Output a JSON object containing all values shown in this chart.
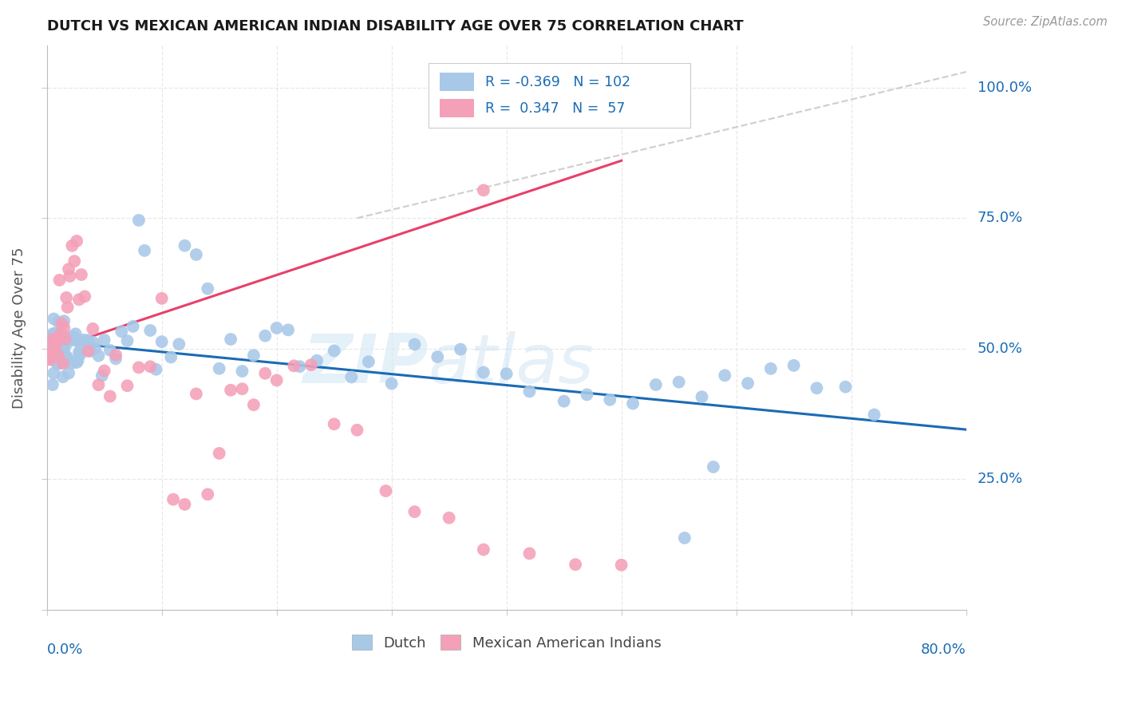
{
  "title": "DUTCH VS MEXICAN AMERICAN INDIAN DISABILITY AGE OVER 75 CORRELATION CHART",
  "source": "Source: ZipAtlas.com",
  "ylabel": "Disability Age Over 75",
  "legend_dutch_R": "-0.369",
  "legend_dutch_N": "102",
  "legend_mai_R": "0.347",
  "legend_mai_N": "57",
  "dutch_color": "#a8c8e8",
  "mai_color": "#f4a0b8",
  "trend_dutch_color": "#1a6bb5",
  "trend_mai_color": "#e84068",
  "trend_gray_color": "#c8c8c8",
  "background_color": "#ffffff",
  "grid_color": "#e8e8e8",
  "xlim": [
    0.0,
    0.8
  ],
  "ylim": [
    0.0,
    1.08
  ],
  "ytick_labels": [
    "25.0%",
    "50.0%",
    "75.0%",
    "100.0%"
  ],
  "ytick_vals": [
    0.25,
    0.5,
    0.75,
    1.0
  ],
  "xtick_left": "0.0%",
  "xtick_right": "80.0%",
  "watermark_zip": "ZIP",
  "watermark_atlas": "atlas",
  "legend_label_dutch": "Dutch",
  "legend_label_mai": "Mexican American Indians",
  "dutch_x": [
    0.002,
    0.003,
    0.003,
    0.004,
    0.004,
    0.005,
    0.005,
    0.006,
    0.006,
    0.007,
    0.007,
    0.008,
    0.008,
    0.009,
    0.009,
    0.01,
    0.01,
    0.011,
    0.011,
    0.012,
    0.012,
    0.013,
    0.013,
    0.014,
    0.014,
    0.015,
    0.015,
    0.016,
    0.016,
    0.017,
    0.018,
    0.019,
    0.02,
    0.021,
    0.022,
    0.023,
    0.024,
    0.025,
    0.026,
    0.027,
    0.028,
    0.029,
    0.03,
    0.032,
    0.034,
    0.036,
    0.038,
    0.04,
    0.042,
    0.045,
    0.048,
    0.05,
    0.055,
    0.06,
    0.065,
    0.07,
    0.075,
    0.08,
    0.085,
    0.09,
    0.095,
    0.1,
    0.108,
    0.115,
    0.12,
    0.13,
    0.14,
    0.15,
    0.16,
    0.17,
    0.18,
    0.19,
    0.2,
    0.21,
    0.22,
    0.235,
    0.25,
    0.265,
    0.28,
    0.3,
    0.32,
    0.34,
    0.36,
    0.38,
    0.4,
    0.42,
    0.45,
    0.47,
    0.49,
    0.51,
    0.53,
    0.55,
    0.57,
    0.59,
    0.61,
    0.63,
    0.65,
    0.67,
    0.695,
    0.72,
    0.555,
    0.58
  ],
  "dutch_y": [
    0.51,
    0.5,
    0.52,
    0.5,
    0.51,
    0.49,
    0.52,
    0.5,
    0.51,
    0.5,
    0.52,
    0.49,
    0.51,
    0.5,
    0.52,
    0.5,
    0.51,
    0.5,
    0.52,
    0.49,
    0.51,
    0.5,
    0.52,
    0.5,
    0.51,
    0.5,
    0.52,
    0.49,
    0.51,
    0.5,
    0.52,
    0.5,
    0.51,
    0.52,
    0.5,
    0.49,
    0.51,
    0.52,
    0.5,
    0.51,
    0.5,
    0.52,
    0.51,
    0.5,
    0.49,
    0.52,
    0.5,
    0.51,
    0.5,
    0.52,
    0.5,
    0.49,
    0.51,
    0.5,
    0.52,
    0.49,
    0.51,
    0.75,
    0.73,
    0.5,
    0.49,
    0.51,
    0.5,
    0.49,
    0.61,
    0.63,
    0.6,
    0.47,
    0.5,
    0.46,
    0.49,
    0.48,
    0.55,
    0.5,
    0.46,
    0.48,
    0.5,
    0.44,
    0.47,
    0.46,
    0.49,
    0.44,
    0.47,
    0.45,
    0.42,
    0.44,
    0.42,
    0.44,
    0.43,
    0.42,
    0.43,
    0.44,
    0.42,
    0.43,
    0.44,
    0.43,
    0.42,
    0.44,
    0.37,
    0.38,
    0.14,
    0.25
  ],
  "mai_x": [
    0.002,
    0.003,
    0.004,
    0.005,
    0.006,
    0.007,
    0.008,
    0.009,
    0.01,
    0.011,
    0.012,
    0.013,
    0.014,
    0.015,
    0.016,
    0.017,
    0.018,
    0.019,
    0.02,
    0.022,
    0.024,
    0.026,
    0.028,
    0.03,
    0.033,
    0.036,
    0.04,
    0.045,
    0.05,
    0.055,
    0.06,
    0.07,
    0.08,
    0.09,
    0.1,
    0.11,
    0.12,
    0.13,
    0.14,
    0.15,
    0.16,
    0.17,
    0.18,
    0.19,
    0.2,
    0.215,
    0.23,
    0.25,
    0.27,
    0.295,
    0.32,
    0.35,
    0.38,
    0.42,
    0.46,
    0.5,
    0.38
  ],
  "mai_y": [
    0.52,
    0.51,
    0.5,
    0.52,
    0.54,
    0.5,
    0.52,
    0.51,
    0.5,
    0.6,
    0.55,
    0.57,
    0.52,
    0.54,
    0.5,
    0.56,
    0.58,
    0.64,
    0.66,
    0.68,
    0.65,
    0.7,
    0.62,
    0.67,
    0.58,
    0.54,
    0.5,
    0.47,
    0.44,
    0.46,
    0.48,
    0.4,
    0.44,
    0.42,
    0.55,
    0.22,
    0.24,
    0.42,
    0.26,
    0.29,
    0.45,
    0.44,
    0.42,
    0.46,
    0.44,
    0.46,
    0.43,
    0.35,
    0.34,
    0.22,
    0.14,
    0.13,
    0.12,
    0.1,
    0.09,
    0.08,
    0.8
  ],
  "dutch_trend_x0": 0.0,
  "dutch_trend_y0": 0.515,
  "dutch_trend_x1": 0.8,
  "dutch_trend_y1": 0.345,
  "mai_trend_x0": 0.0,
  "mai_trend_y0": 0.495,
  "mai_trend_x1": 0.5,
  "mai_trend_y1": 0.86,
  "gray_trend_x0": 0.27,
  "gray_trend_y0": 0.75,
  "gray_trend_x1": 0.8,
  "gray_trend_y1": 1.03
}
